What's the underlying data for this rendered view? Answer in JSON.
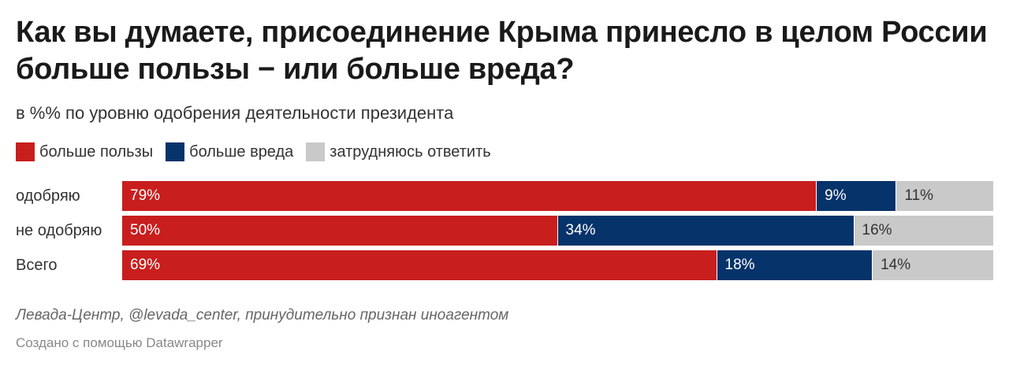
{
  "header": {
    "title": "Как вы думаете, присоединение Крыма принесло в целом России больше пользы − или больше вреда?",
    "subtitle": "в %% по уровню одобрения деятельности президента"
  },
  "colors": {
    "benefit": "#c81e1e",
    "harm": "#06336a",
    "unsure": "#c9c9c9"
  },
  "chart_data": {
    "type": "bar",
    "orientation": "horizontal",
    "stacked": true,
    "title": "Как вы думаете, присоединение Крыма принесло в целом России больше пользы − или больше вреда?",
    "subtitle": "в %% по уровню одобрения деятельности президента",
    "legend_position": "top-left",
    "categories": [
      "одобряю",
      "не одобряю",
      "Всего"
    ],
    "series": [
      {
        "name": "больше пользы",
        "color": "#c81e1e",
        "values": [
          79,
          50,
          69
        ],
        "labels": [
          "79%",
          "50%",
          "69%"
        ]
      },
      {
        "name": "больше вреда",
        "color": "#06336a",
        "values": [
          9,
          34,
          18
        ],
        "labels": [
          "9%",
          "34%",
          "18%"
        ]
      },
      {
        "name": "затрудняюсь ответить",
        "color": "#c9c9c9",
        "values": [
          11,
          16,
          14
        ],
        "labels": [
          "11%",
          "16%",
          "14%"
        ]
      }
    ],
    "xlim": [
      0,
      100
    ]
  },
  "footer": {
    "source": "Левада-Центр, @levada_center, принудительно признан иноагентом",
    "credit": "Создано с помощью Datawrapper"
  }
}
